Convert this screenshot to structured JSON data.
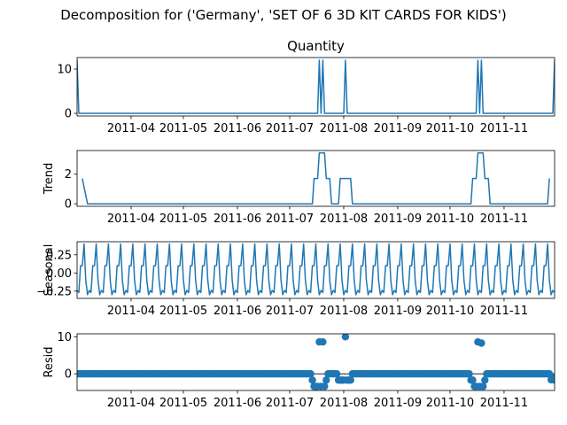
{
  "figure": {
    "suptitle": "Decomposition for ('Germany', 'SET OF 6 3D KIT CARDS FOR KIDS')"
  },
  "chart_data": [
    {
      "type": "line",
      "title": "Quantity",
      "ylabel": "",
      "ylim": [
        -0.6,
        12.6
      ],
      "yticks": [
        0,
        10
      ],
      "ytick_labels": [
        "0",
        "10"
      ],
      "xlim": [
        "2011-03-01",
        "2011-11-30"
      ],
      "xtick_labels": [
        "2011-04",
        "2011-05",
        "2011-06",
        "2011-07",
        "2011-08",
        "2011-09",
        "2011-10",
        "2011-11"
      ],
      "series": [
        {
          "values": [
            [
              "2011-03-01",
              12
            ],
            [
              "2011-03-02",
              0
            ],
            [
              "2011-07-17",
              0
            ],
            [
              "2011-07-18",
              12
            ],
            [
              "2011-07-19",
              0
            ],
            [
              "2011-07-20",
              12
            ],
            [
              "2011-07-21",
              0
            ],
            [
              "2011-08-01",
              0
            ],
            [
              "2011-08-02",
              12
            ],
            [
              "2011-08-03",
              0
            ],
            [
              "2011-10-16",
              0
            ],
            [
              "2011-10-17",
              12
            ],
            [
              "2011-10-18",
              0
            ],
            [
              "2011-10-19",
              12
            ],
            [
              "2011-10-20",
              0
            ],
            [
              "2011-11-29",
              0
            ],
            [
              "2011-11-30",
              12
            ]
          ]
        }
      ]
    },
    {
      "type": "line",
      "title": "",
      "ylabel": "Trend",
      "ylim": [
        -0.17,
        3.6
      ],
      "yticks": [
        0,
        2
      ],
      "ytick_labels": [
        "0",
        "2"
      ],
      "xlim": [
        "2011-03-01",
        "2011-11-30"
      ],
      "xtick_labels": [
        "2011-04",
        "2011-05",
        "2011-06",
        "2011-07",
        "2011-08",
        "2011-09",
        "2011-10",
        "2011-11"
      ],
      "series": [
        {
          "values": [
            [
              "2011-03-04",
              1.71
            ],
            [
              "2011-03-07",
              0
            ],
            [
              "2011-07-14",
              0
            ],
            [
              "2011-07-15",
              1.71
            ],
            [
              "2011-07-17",
              1.71
            ],
            [
              "2011-07-18",
              3.43
            ],
            [
              "2011-07-21",
              3.43
            ],
            [
              "2011-07-22",
              1.71
            ],
            [
              "2011-07-24",
              1.71
            ],
            [
              "2011-07-25",
              0
            ],
            [
              "2011-07-29",
              0
            ],
            [
              "2011-07-30",
              1.71
            ],
            [
              "2011-08-05",
              1.71
            ],
            [
              "2011-08-06",
              0
            ],
            [
              "2011-10-13",
              0
            ],
            [
              "2011-10-14",
              1.71
            ],
            [
              "2011-10-16",
              1.71
            ],
            [
              "2011-10-17",
              3.43
            ],
            [
              "2011-10-20",
              3.43
            ],
            [
              "2011-10-21",
              1.71
            ],
            [
              "2011-10-23",
              1.71
            ],
            [
              "2011-10-24",
              0
            ],
            [
              "2011-11-26",
              0
            ],
            [
              "2011-11-27",
              1.71
            ]
          ]
        }
      ]
    },
    {
      "type": "line",
      "title": "",
      "ylabel": "Seasonal",
      "ylim": [
        -0.35,
        0.43
      ],
      "yticks": [
        0.25,
        0,
        -0.25
      ],
      "ytick_labels": [
        "0.25",
        "0.00",
        "−0.25"
      ],
      "xlim": [
        "2011-03-01",
        "2011-11-30"
      ],
      "xtick_labels": [
        "2011-04",
        "2011-05",
        "2011-06",
        "2011-07",
        "2011-08",
        "2011-09",
        "2011-10",
        "2011-11"
      ],
      "period_days": 7,
      "start": "2011-03-01",
      "pattern": [
        -0.24,
        -0.27,
        0.1,
        0.1,
        0.4,
        -0.1,
        -0.3
      ]
    },
    {
      "type": "scatter",
      "title": "",
      "ylabel": "Resid",
      "ylim": [
        -4.5,
        10.8
      ],
      "yticks": [
        0,
        10
      ],
      "ytick_labels": [
        "0",
        "10"
      ],
      "xlim": [
        "2011-03-01",
        "2011-11-30"
      ],
      "xtick_labels": [
        "2011-04",
        "2011-05",
        "2011-06",
        "2011-07",
        "2011-08",
        "2011-09",
        "2011-10",
        "2011-11"
      ],
      "baseline": 0,
      "outliers": [
        [
          "2011-07-14",
          -1.7
        ],
        [
          "2011-07-15",
          -3.4
        ],
        [
          "2011-07-16",
          -3.4
        ],
        [
          "2011-07-17",
          -3.4
        ],
        [
          "2011-07-18",
          8.6
        ],
        [
          "2011-07-19",
          -3.4
        ],
        [
          "2011-07-20",
          8.6
        ],
        [
          "2011-07-21",
          -3.4
        ],
        [
          "2011-07-22",
          -1.7
        ],
        [
          "2011-07-29",
          -1.7
        ],
        [
          "2011-07-30",
          -1.7
        ],
        [
          "2011-07-31",
          -1.7
        ],
        [
          "2011-08-01",
          -1.7
        ],
        [
          "2011-08-02",
          10.0
        ],
        [
          "2011-08-03",
          -1.7
        ],
        [
          "2011-08-04",
          -1.7
        ],
        [
          "2011-08-05",
          -1.7
        ],
        [
          "2011-10-13",
          -1.7
        ],
        [
          "2011-10-14",
          -1.7
        ],
        [
          "2011-10-15",
          -3.4
        ],
        [
          "2011-10-16",
          -3.4
        ],
        [
          "2011-10-17",
          8.6
        ],
        [
          "2011-10-18",
          -3.4
        ],
        [
          "2011-10-19",
          8.3
        ],
        [
          "2011-10-20",
          -3.4
        ],
        [
          "2011-10-21",
          -1.7
        ],
        [
          "2011-11-28",
          -1.6
        ],
        [
          "2011-11-29",
          -1.0
        ],
        [
          "2011-11-30",
          -1.7
        ]
      ]
    }
  ]
}
